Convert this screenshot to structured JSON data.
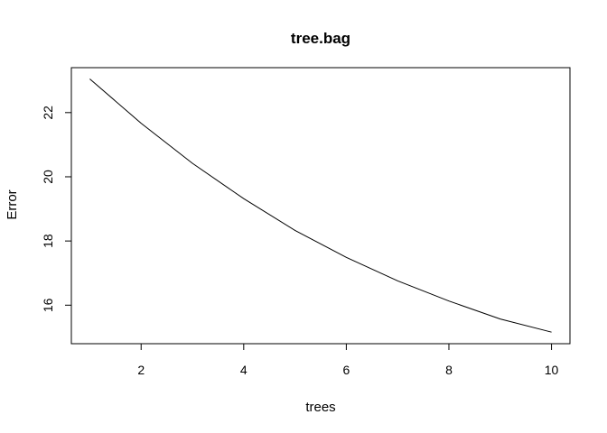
{
  "chart_data": {
    "type": "line",
    "title": "tree.bag",
    "xlabel": "trees",
    "ylabel": "Error",
    "x": [
      1,
      2,
      3,
      4,
      5,
      6,
      7,
      8,
      9,
      10
    ],
    "series": [
      {
        "values": [
          23.05,
          21.67,
          20.42,
          19.32,
          18.33,
          17.49,
          16.76,
          16.13,
          15.57,
          15.16
        ],
        "color": "#000000"
      }
    ],
    "xlim": [
      0.64,
      10.36
    ],
    "ylim": [
      14.8,
      23.4
    ],
    "xticks": [
      "2",
      "4",
      "6",
      "8",
      "10"
    ],
    "xtick_values": [
      2,
      4,
      6,
      8,
      10
    ],
    "yticks": [
      "16",
      "18",
      "20",
      "22"
    ],
    "ytick_values": [
      16,
      18,
      20,
      22
    ],
    "grid": false,
    "legend": "none"
  }
}
